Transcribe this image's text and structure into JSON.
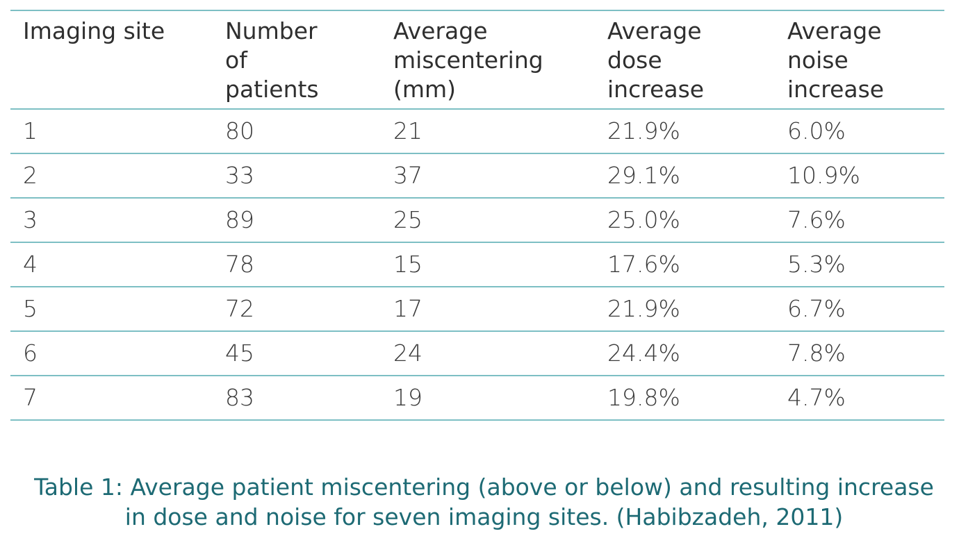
{
  "table": {
    "headers": [
      "Imaging site",
      "Number of patients",
      "Average miscentering (mm)",
      "Average dose increase",
      "Average noise increase"
    ],
    "header_lines": [
      [
        "Imaging site"
      ],
      [
        "Number",
        "of",
        "patients"
      ],
      [
        "Average",
        "miscentering",
        "(mm)"
      ],
      [
        "Average",
        "dose",
        "increase"
      ],
      [
        "Average",
        "noise",
        "increase"
      ]
    ],
    "rows": [
      [
        "1",
        "80",
        "21",
        "21.9%",
        "6.0%"
      ],
      [
        "2",
        "33",
        "37",
        "29.1%",
        "10.9%"
      ],
      [
        "3",
        "89",
        "25",
        "25.0%",
        "7.6%"
      ],
      [
        "4",
        "78",
        "15",
        "17.6%",
        "5.3%"
      ],
      [
        "5",
        "72",
        "17",
        "21.9%",
        "6.7%"
      ],
      [
        "6",
        "45",
        "24",
        "24.4%",
        "7.8%"
      ],
      [
        "7",
        "83",
        "19",
        "19.8%",
        "4.7%"
      ]
    ]
  },
  "caption": {
    "line1": "Table 1: Average patient miscentering (above or below) and resulting increase",
    "line2": "in dose and noise for seven imaging sites. (Habibzadeh, 2011)"
  },
  "colors": {
    "rule": "#7dbfc4",
    "caption": "#1d6a74",
    "text": "#2f2f2f"
  }
}
